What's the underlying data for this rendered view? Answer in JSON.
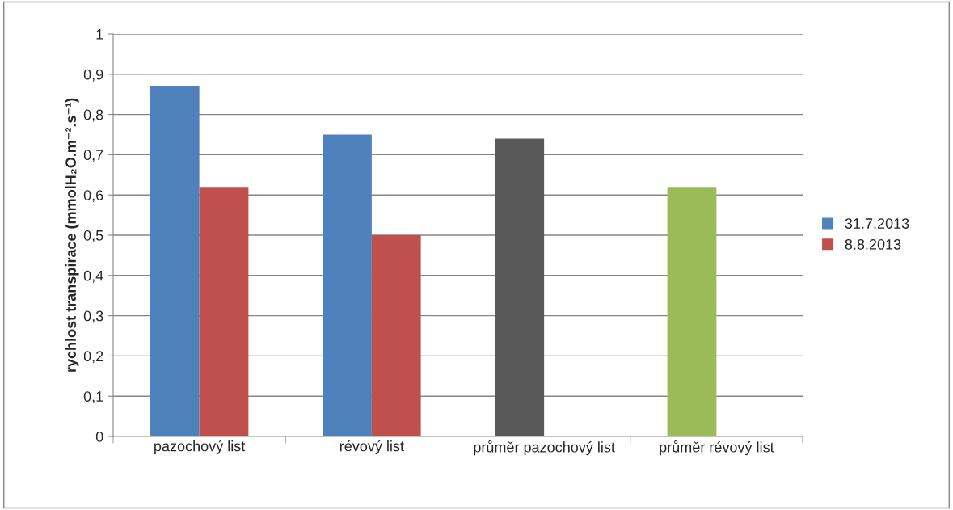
{
  "chart_data": {
    "type": "bar",
    "ylabel": "rychlost transpirace (mmolH₂O.m⁻².s⁻¹)",
    "categories": [
      "pazochový list",
      "révový list",
      "průměr pazochový list",
      "průměr révový list"
    ],
    "series": [
      {
        "name": "31.7.2013",
        "color": "#4f81bd",
        "colors": [
          "#4f81bd",
          "#4f81bd",
          "#595959",
          "#9bbb59"
        ],
        "values": [
          0.87,
          0.75,
          0.74,
          0.62
        ]
      },
      {
        "name": "8.8.2013",
        "color": "#c0504d",
        "values": [
          0.62,
          0.5,
          null,
          null
        ]
      }
    ],
    "ylim": [
      0,
      1
    ],
    "yticks": [
      0,
      {
        "value": 0.1,
        "label": "0,1"
      },
      {
        "value": 0.2,
        "label": "0,2"
      },
      {
        "value": 0.3,
        "label": "0,3"
      },
      {
        "value": 0.4,
        "label": "0,4"
      },
      {
        "value": 0.5,
        "label": "0,5"
      },
      {
        "value": 0.6,
        "label": "0,6"
      },
      {
        "value": 0.7,
        "label": "0,7"
      },
      {
        "value": 0.8,
        "label": "0,8"
      },
      {
        "value": 0.9,
        "label": "0,9"
      },
      1
    ],
    "grid": "y",
    "legend": "right"
  }
}
